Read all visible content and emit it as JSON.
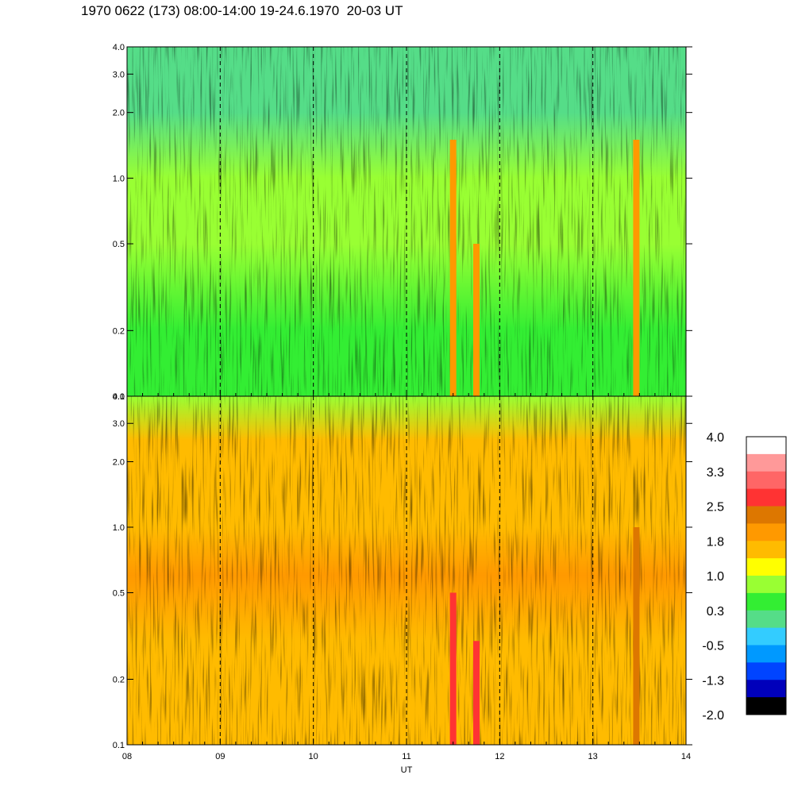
{
  "title": "1970 0622 (173) 08:00-14:00 19-24.6.1970  20-03 UT",
  "chart_data": [
    {
      "type": "heatmap",
      "panel": "top",
      "x_range": [
        "08",
        "14"
      ],
      "y_scale": "log",
      "y_range": [
        0.1,
        4.0
      ],
      "y_ticks": [
        "0.1",
        "0.2",
        "0.5",
        "1.0",
        "2.0",
        "3.0",
        "4.0"
      ],
      "x_ticks": [
        "08",
        "09",
        "10",
        "11",
        "12",
        "13",
        "14"
      ],
      "dashed_lines_at": [
        "09",
        "10",
        "11",
        "12",
        "13"
      ],
      "dominant_value_profile": [
        {
          "y": 0.1,
          "value": 0.3
        },
        {
          "y": 0.2,
          "value": 0.5
        },
        {
          "y": 0.5,
          "value": 1.0
        },
        {
          "y": 1.0,
          "value": 0.9
        },
        {
          "y": 2.0,
          "value": 0.2
        },
        {
          "y": 4.0,
          "value": 0.2
        }
      ],
      "features": [
        {
          "x": "11:30",
          "value": 1.9,
          "y_range": [
            0.1,
            1.5
          ]
        },
        {
          "x": "11:45",
          "value": 1.9,
          "y_range": [
            0.1,
            0.5
          ]
        },
        {
          "x": "13:28",
          "value": 2.1,
          "y_range": [
            0.1,
            1.5
          ]
        }
      ]
    },
    {
      "type": "heatmap",
      "panel": "bottom",
      "xlabel": "UT",
      "x_range": [
        "08",
        "14"
      ],
      "y_scale": "log",
      "y_range": [
        0.1,
        4.0
      ],
      "y_ticks": [
        "0.1",
        "0.2",
        "0.5",
        "1.0",
        "2.0",
        "3.0",
        "4.0"
      ],
      "x_ticks": [
        "08",
        "09",
        "10",
        "11",
        "12",
        "13",
        "14"
      ],
      "dashed_lines_at": [
        "09",
        "10",
        "11",
        "12",
        "13"
      ],
      "dominant_value_profile": [
        {
          "y": 0.1,
          "value": 1.5
        },
        {
          "y": 0.3,
          "value": 1.6
        },
        {
          "y": 0.6,
          "value": 2.0
        },
        {
          "y": 1.0,
          "value": 1.7
        },
        {
          "y": 2.5,
          "value": 1.4
        },
        {
          "y": 4.0,
          "value": 0.8
        }
      ],
      "features": [
        {
          "x": "11:30",
          "value": 2.8,
          "y_range": [
            0.1,
            0.5
          ]
        },
        {
          "x": "11:45",
          "value": 2.8,
          "y_range": [
            0.1,
            0.3
          ]
        },
        {
          "x": "13:28",
          "value": 2.5,
          "y_range": [
            0.1,
            1.0
          ]
        }
      ]
    }
  ],
  "colorbar": {
    "labels": [
      "4.0",
      "3.3",
      "2.5",
      "1.8",
      "1.0",
      "0.3",
      "-0.5",
      "-1.3",
      "-2.0"
    ],
    "colors": [
      "#ffffff",
      "#ff9999",
      "#ff6666",
      "#ff3333",
      "#dd7700",
      "#ff9900",
      "#ffbb00",
      "#ffff00",
      "#99ff33",
      "#33ee33",
      "#55dd88",
      "#33ccff",
      "#0099ff",
      "#0044ff",
      "#0000bb",
      "#000000"
    ]
  }
}
